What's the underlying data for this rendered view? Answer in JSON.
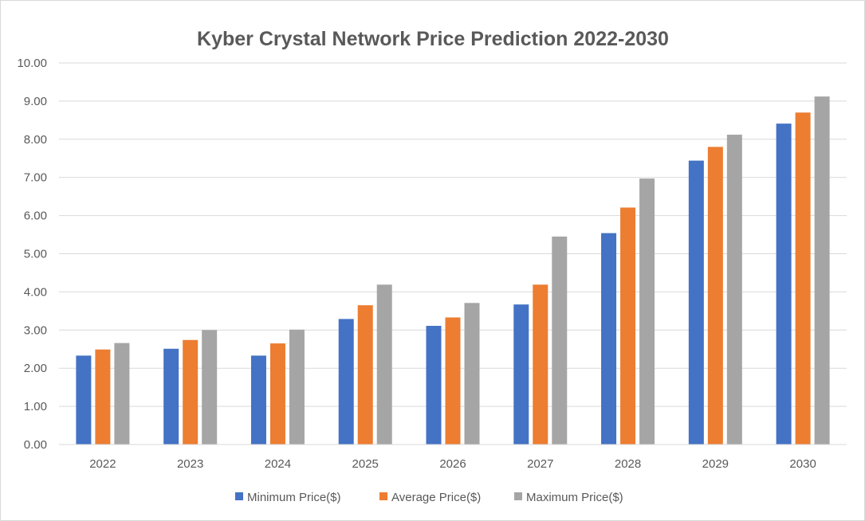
{
  "chart_data": {
    "type": "bar",
    "title": "Kyber Crystal Network Price Prediction 2022-2030",
    "xlabel": "",
    "ylabel": "",
    "categories": [
      "2022",
      "2023",
      "2024",
      "2025",
      "2026",
      "2027",
      "2028",
      "2029",
      "2030"
    ],
    "ylim": [
      0,
      10
    ],
    "yticks": [
      "0.00",
      "1.00",
      "2.00",
      "3.00",
      "4.00",
      "5.00",
      "6.00",
      "7.00",
      "8.00",
      "9.00",
      "10.00"
    ],
    "grid": true,
    "legend_position": "bottom",
    "series": [
      {
        "name": "Minimum Price($)",
        "color": "#4472c4",
        "values": [
          2.33,
          2.51,
          2.33,
          3.29,
          3.11,
          3.67,
          5.54,
          7.44,
          8.41
        ]
      },
      {
        "name": "Average Price($)",
        "color": "#ed7d31",
        "values": [
          2.49,
          2.74,
          2.65,
          3.65,
          3.33,
          4.19,
          6.21,
          7.8,
          8.7
        ]
      },
      {
        "name": "Maximum Price($)",
        "color": "#a5a5a5",
        "values": [
          2.66,
          3.0,
          3.01,
          4.19,
          3.71,
          5.45,
          6.97,
          8.12,
          9.12
        ]
      }
    ]
  }
}
